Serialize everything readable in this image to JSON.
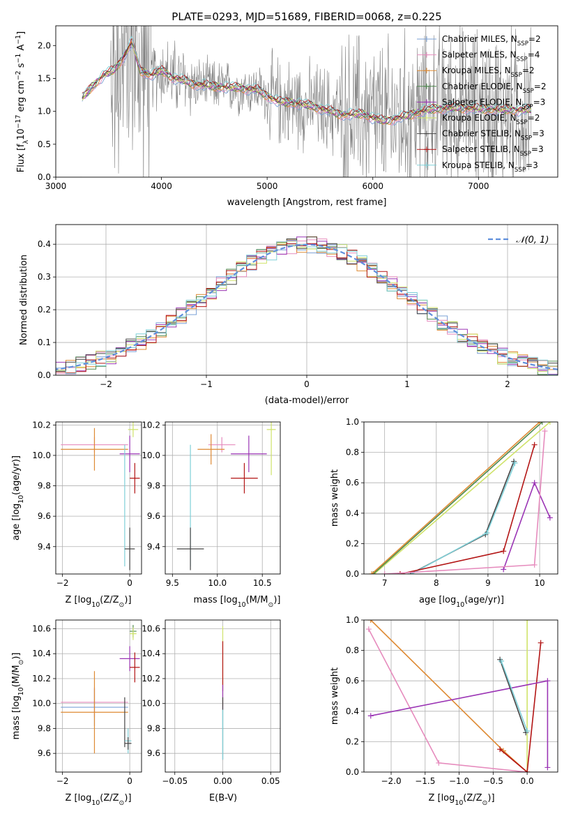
{
  "colors": {
    "chab_miles": "#7aa0d6",
    "salp_miles": "#e68bbd",
    "krou_miles": "#de8a33",
    "chab_elodie": "#4e8a4e",
    "salp_elodie": "#9b35b5",
    "krou_elodie": "#cfe36a",
    "chab_stelib": "#454545",
    "salp_stelib": "#b31515",
    "krou_stelib": "#7fd0d8",
    "normal": "#5f8fdc",
    "spectrum": "#808080",
    "grid": "#b0b0b0"
  },
  "legend_labels": {
    "chab_miles": "Chabrier MILES, N",
    "salp_miles": "Salpeter MILES, N",
    "krou_miles": "Kroupa MILES, N",
    "chab_elodie": "Chabrier ELODIE, N",
    "salp_elodie": "Salpeter ELODIE, N",
    "krou_elodie": "Kroupa ELODIE, N",
    "chab_stelib": "Chabrier STELIB, N",
    "salp_stelib": "Salpeter STELIB, N",
    "krou_stelib": "Kroupa STELIB, N"
  },
  "legend_sub": "SSP",
  "legend_nssp": {
    "chab_miles": "=2",
    "salp_miles": "=4",
    "krou_miles": "=2",
    "chab_elodie": "=2",
    "salp_elodie": "=3",
    "krou_elodie": "=2",
    "chab_stelib": "=3",
    "salp_stelib": "=3",
    "krou_stelib": "=3"
  },
  "chart_data": [
    {
      "id": "spectrum",
      "type": "line",
      "title": "PLATE=0293, MJD=51689, FIBERID=0068, z=0.225",
      "xlabel": "wavelength [Angstrom, rest frame]",
      "ylabel_main": "Flux [f",
      "ylabel_sub": "λ",
      "ylabel_rest": "10",
      "ylabel_exp1": "−17",
      "ylabel_mid": " erg cm",
      "ylabel_exp2": "−2",
      "ylabel_s": " s",
      "ylabel_exp3": "−1",
      "ylabel_end": " A",
      "ylabel_exp4": "−1",
      "ylabel_close": "]",
      "xlim": [
        3000,
        7750
      ],
      "ylim": [
        0,
        2.3
      ],
      "xticks": [
        "3000",
        "4000",
        "5000",
        "6000",
        "7000"
      ],
      "yticks": [
        "0.0",
        "0.5",
        "1.0",
        "1.5",
        "2.0"
      ],
      "legend_position": "top-right",
      "data_range": [
        3250,
        7500
      ],
      "model_range": [
        3250,
        7500
      ],
      "continuum": [
        [
          3250,
          1.2
        ],
        [
          3350,
          1.38
        ],
        [
          3450,
          1.55
        ],
        [
          3550,
          1.62
        ],
        [
          3650,
          1.85
        ],
        [
          3720,
          2.05
        ],
        [
          3800,
          1.62
        ],
        [
          3900,
          1.55
        ],
        [
          4000,
          1.62
        ],
        [
          4100,
          1.52
        ],
        [
          4300,
          1.42
        ],
        [
          4500,
          1.38
        ],
        [
          4700,
          1.36
        ],
        [
          4900,
          1.33
        ],
        [
          5100,
          1.15
        ],
        [
          5300,
          1.12
        ],
        [
          5500,
          1.05
        ],
        [
          5700,
          0.95
        ],
        [
          5900,
          0.96
        ],
        [
          6100,
          0.85
        ],
        [
          6300,
          0.92
        ],
        [
          6500,
          1.02
        ],
        [
          6700,
          1.05
        ],
        [
          6900,
          1.05
        ],
        [
          7100,
          1.03
        ],
        [
          7300,
          1.02
        ],
        [
          7500,
          1.02
        ]
      ]
    },
    {
      "id": "residuals",
      "type": "histogram",
      "xlabel": "(data-model)/error",
      "ylabel": "Normed distribution",
      "xlim": [
        -2.5,
        2.5
      ],
      "ylim": [
        0,
        0.46
      ],
      "xticks": [
        "−2",
        "−1",
        "0",
        "1",
        "2"
      ],
      "yticks": [
        "0.0",
        "0.1",
        "0.2",
        "0.3",
        "0.4"
      ],
      "grid": true,
      "legend_label": "𝒩(0, 1)",
      "legend_position": "top-right",
      "bin_width": 0.1
    },
    {
      "id": "age_vs_Z",
      "type": "errorbar",
      "xlabel_main": "Z [log",
      "xlabel_sub": "10",
      "xlabel_rest": "(Z/Z",
      "xlabel_sun": "⊙",
      "xlabel_close": ")]",
      "ylabel_main": "age  [log",
      "ylabel_sub": "10",
      "ylabel_rest": "(age/yr)]",
      "xlim": [
        -2.2,
        0.35
      ],
      "ylim": [
        9.22,
        10.22
      ],
      "xticks": [
        "−2",
        "0"
      ],
      "yticks": [
        "9.4",
        "9.6",
        "9.8",
        "10.0",
        "10.2"
      ],
      "grid": true,
      "points": [
        {
          "k": "salp_miles",
          "x": -1.05,
          "xerr": 1.0,
          "y": 10.07,
          "yerr": 0.05
        },
        {
          "k": "krou_miles",
          "x": -1.05,
          "xerr": 1.0,
          "y": 10.04,
          "yerr": 0.14
        },
        {
          "k": "krou_elodie",
          "x": 0.1,
          "xerr": 0.15,
          "y": 10.17,
          "yerr": 0.05
        },
        {
          "k": "salp_elodie",
          "x": 0.0,
          "xerr": 0.3,
          "y": 10.01,
          "yerr": 0.12
        },
        {
          "k": "salp_stelib",
          "x": 0.15,
          "xerr": 0.15,
          "y": 9.85,
          "yerr": 0.1
        },
        {
          "k": "krou_stelib",
          "x": -0.15,
          "xerr": 0.0,
          "y": 9.67,
          "yerr": 0.4
        },
        {
          "k": "chab_stelib",
          "x": 0.0,
          "xerr": 0.15,
          "y": 9.385,
          "yerr": 0.14
        }
      ]
    },
    {
      "id": "age_vs_mass",
      "type": "errorbar",
      "xlabel_main": "mass [log",
      "xlabel_sub": "10",
      "xlabel_rest": "(M/M",
      "xlabel_sun": "⊙",
      "xlabel_close": ")]",
      "xlim": [
        9.42,
        10.7
      ],
      "ylim": [
        9.22,
        10.22
      ],
      "xticks": [
        "9.5",
        "10.0",
        "10.5"
      ],
      "yticks": [
        "9.4",
        "9.6",
        "9.8",
        "10.0",
        "10.2"
      ],
      "grid": true,
      "points": [
        {
          "k": "salp_miles",
          "x": 10.05,
          "xerr": 0.15,
          "y": 10.07,
          "yerr": 0.05
        },
        {
          "k": "krou_miles",
          "x": 9.93,
          "xerr": 0.15,
          "y": 10.04,
          "yerr": 0.1
        },
        {
          "k": "krou_elodie",
          "x": 10.6,
          "xerr": 0.05,
          "y": 10.17,
          "yerr": 0.3
        },
        {
          "k": "salp_elodie",
          "x": 10.35,
          "xerr": 0.2,
          "y": 10.01,
          "yerr": 0.12
        },
        {
          "k": "salp_stelib",
          "x": 10.3,
          "xerr": 0.15,
          "y": 9.85,
          "yerr": 0.1
        },
        {
          "k": "krou_stelib",
          "x": 9.7,
          "xerr": 0.0,
          "y": 9.67,
          "yerr": 0.4
        },
        {
          "k": "chab_stelib",
          "x": 9.7,
          "xerr": 0.15,
          "y": 9.385,
          "yerr": 0.14
        }
      ]
    },
    {
      "id": "weight_vs_age",
      "type": "line",
      "xlabel_main": "age  [log",
      "xlabel_sub": "10",
      "xlabel_rest": "(age/yr)]",
      "ylabel": "mass weight",
      "xlim": [
        6.6,
        10.35
      ],
      "ylim": [
        0,
        1.0
      ],
      "xticks": [
        "7",
        "8",
        "9",
        "10"
      ],
      "yticks": [
        "0.0",
        "0.2",
        "0.4",
        "0.6",
        "0.8",
        "1.0"
      ],
      "grid": true,
      "series": [
        {
          "k": "krou_elodie",
          "points": [
            [
              6.8,
              0.0
            ],
            [
              10.2,
              1.0
            ]
          ]
        },
        {
          "k": "chab_elodie",
          "points": [
            [
              6.78,
              0.0
            ],
            [
              10.05,
              1.0
            ]
          ]
        },
        {
          "k": "krou_miles",
          "points": [
            [
              6.75,
              0.0
            ],
            [
              10.0,
              1.0
            ]
          ]
        },
        {
          "k": "chab_stelib",
          "points": [
            [
              7.5,
              0.0
            ],
            [
              8.95,
              0.26
            ],
            [
              9.5,
              0.74
            ]
          ]
        },
        {
          "k": "krou_stelib",
          "points": [
            [
              7.52,
              0.0
            ],
            [
              8.98,
              0.27
            ],
            [
              9.52,
              0.73
            ]
          ]
        },
        {
          "k": "salp_stelib",
          "points": [
            [
              7.3,
              0.0
            ],
            [
              9.3,
              0.15
            ],
            [
              9.9,
              0.85
            ]
          ]
        },
        {
          "k": "salp_elodie",
          "points": [
            [
              9.3,
              0.03
            ],
            [
              9.9,
              0.6
            ],
            [
              10.2,
              0.37
            ]
          ]
        },
        {
          "k": "salp_miles",
          "points": [
            [
              7.0,
              0.0
            ],
            [
              9.9,
              0.06
            ],
            [
              10.1,
              0.94
            ]
          ]
        }
      ]
    },
    {
      "id": "mass_vs_Z",
      "type": "errorbar",
      "xlabel_main": "Z [log",
      "xlabel_sub": "10",
      "xlabel_rest": "(Z/Z",
      "xlabel_sun": "⊙",
      "xlabel_close": ")]",
      "ylabel_main": "mass [log",
      "ylabel_sub": "10",
      "ylabel_rest": "(M/M",
      "ylabel_sun": "⊙",
      "ylabel_close": ")]",
      "xlim": [
        -2.2,
        0.35
      ],
      "ylim": [
        9.45,
        10.67
      ],
      "xticks": [
        "−2",
        "0"
      ],
      "yticks": [
        "9.6",
        "9.8",
        "10.0",
        "10.2",
        "10.4",
        "10.6"
      ],
      "grid": true,
      "points": [
        {
          "k": "chab_elodie",
          "x": 0.1,
          "xerr": 0.1,
          "y": 10.58,
          "yerr": 0.05
        },
        {
          "k": "krou_elodie",
          "x": 0.1,
          "xerr": 0.1,
          "y": 10.56,
          "yerr": 0.05
        },
        {
          "k": "salp_elodie",
          "x": 0.0,
          "xerr": 0.3,
          "y": 10.36,
          "yerr": 0.1
        },
        {
          "k": "salp_stelib",
          "x": 0.15,
          "xerr": 0.15,
          "y": 10.29,
          "yerr": 0.12
        },
        {
          "k": "salp_miles",
          "x": -1.05,
          "xerr": 1.0,
          "y": 10.01,
          "yerr": 0.12
        },
        {
          "k": "chab_miles",
          "x": -1.05,
          "xerr": 1.0,
          "y": 9.97,
          "yerr": 0.15
        },
        {
          "k": "krou_miles",
          "x": -1.05,
          "xerr": 1.0,
          "y": 9.93,
          "yerr": 0.33
        },
        {
          "k": "chab_stelib",
          "x": -0.15,
          "xerr": 0.0,
          "y": 9.85,
          "yerr": 0.2
        },
        {
          "k": "krou_stelib",
          "x": -0.05,
          "xerr": 0.1,
          "y": 9.7,
          "yerr": 0.1
        },
        {
          "k": "chab_stelib",
          "x": -0.05,
          "xerr": 0.1,
          "y": 9.68,
          "yerr": 0.05
        }
      ]
    },
    {
      "id": "mass_vs_ebv",
      "type": "errorbar",
      "xlabel": "E(B-V)",
      "xlim": [
        -0.06,
        0.06
      ],
      "ylim": [
        9.45,
        10.67
      ],
      "xticks": [
        "−0.05",
        "0.00",
        "0.05"
      ],
      "yticks": [
        "9.6",
        "9.8",
        "10.0",
        "10.2",
        "10.4",
        "10.6"
      ],
      "grid": true,
      "points": [
        {
          "k": "krou_elodie",
          "x": 0.0,
          "xerr": 0.0,
          "y": 10.3,
          "yerr": 0.32
        },
        {
          "k": "salp_stelib",
          "x": 0.0,
          "xerr": 0.0,
          "y": 10.3,
          "yerr": 0.2
        },
        {
          "k": "salp_elodie",
          "x": 0.0,
          "xerr": 0.0,
          "y": 10.05,
          "yerr": 0.1
        },
        {
          "k": "chab_stelib",
          "x": 0.0,
          "xerr": 0.0,
          "y": 9.8,
          "yerr": 0.25
        },
        {
          "k": "krou_stelib",
          "x": 0.0,
          "xerr": 0.0,
          "y": 9.75,
          "yerr": 0.2
        }
      ]
    },
    {
      "id": "weight_vs_Z",
      "type": "line",
      "xlabel_main": "Z [log",
      "xlabel_sub": "10",
      "xlabel_rest": "(Z/Z",
      "xlabel_sun": "⊙",
      "xlabel_close": ")]",
      "ylabel": "mass weight",
      "xlim": [
        -2.4,
        0.45
      ],
      "ylim": [
        0,
        1.0
      ],
      "xticks": [
        "−2.0",
        "−1.5",
        "−1.0",
        "−0.5",
        "0.0"
      ],
      "yticks": [
        "0.0",
        "0.2",
        "0.4",
        "0.6",
        "0.8",
        "1.0"
      ],
      "grid": true,
      "series": [
        {
          "k": "krou_elodie",
          "points": [
            [
              0.0,
              0.0
            ],
            [
              0.0,
              1.0
            ]
          ]
        },
        {
          "k": "krou_miles",
          "points": [
            [
              -2.3,
              1.0
            ],
            [
              -0.35,
              0.14
            ],
            [
              0.0,
              0.0
            ]
          ]
        },
        {
          "k": "salp_miles",
          "points": [
            [
              -2.33,
              0.94
            ],
            [
              -1.3,
              0.06
            ],
            [
              0.0,
              0.0
            ]
          ]
        },
        {
          "k": "salp_stelib",
          "points": [
            [
              -0.4,
              0.15
            ],
            [
              0.0,
              0.0
            ],
            [
              0.2,
              0.85
            ]
          ]
        },
        {
          "k": "salp_elodie",
          "points": [
            [
              -2.3,
              0.37
            ],
            [
              0.3,
              0.6
            ],
            [
              0.3,
              0.03
            ]
          ]
        },
        {
          "k": "chab_stelib",
          "points": [
            [
              -0.4,
              0.74
            ],
            [
              -0.02,
              0.26
            ]
          ]
        },
        {
          "k": "krou_stelib",
          "points": [
            [
              -0.38,
              0.73
            ],
            [
              0.0,
              0.27
            ]
          ]
        }
      ]
    }
  ]
}
